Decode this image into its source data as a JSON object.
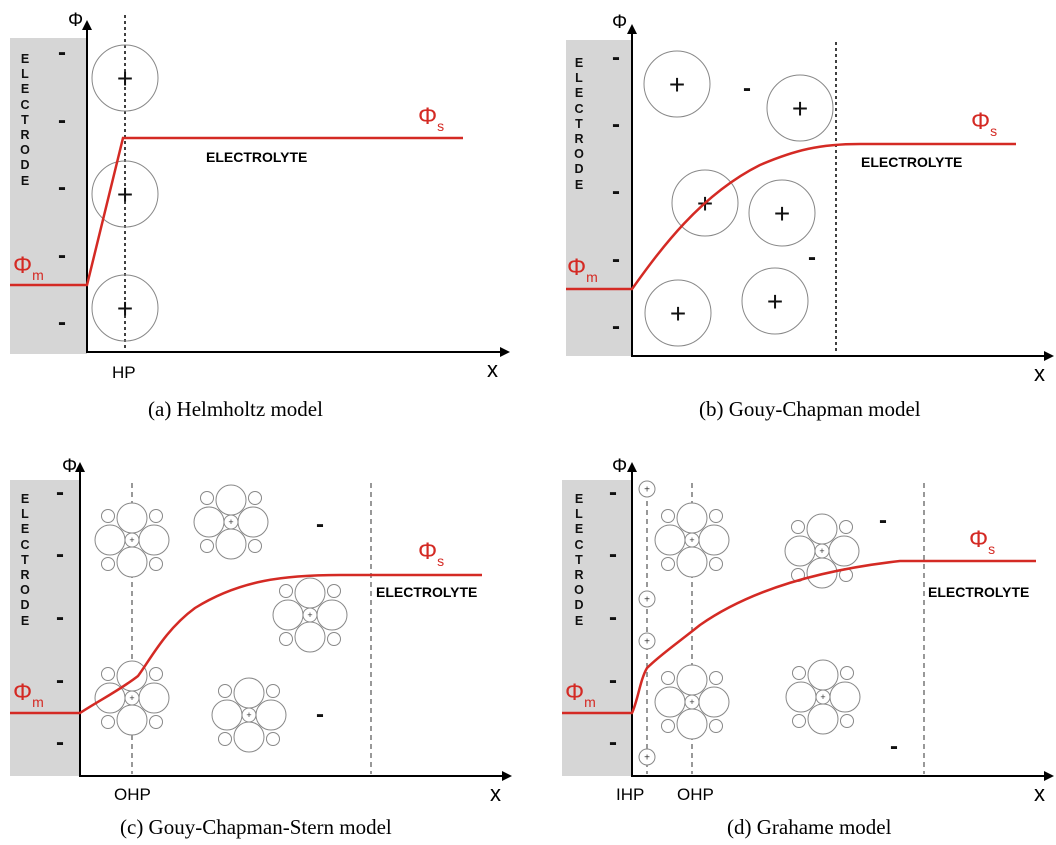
{
  "colors": {
    "potential": "#d42a24",
    "electrode_fill": "#d6d6d6",
    "axis": "#000000",
    "ion": "#888888"
  },
  "panels": [
    {
      "caption": "(a)  Helmholtz model",
      "electrode_label": "ELECTRODE",
      "phi_axis": "Φ",
      "x_axis": "x",
      "phi_m": "Φ",
      "phi_m_sub": "m",
      "phi_s": "Φ",
      "phi_s_sub": "s",
      "electrolyte": "ELECTROLYTE",
      "planes": [
        "HP"
      ]
    },
    {
      "caption": "(b)  Gouy-Chapman model",
      "electrode_label": "ELECTRODE",
      "phi_axis": "Φ",
      "x_axis": "x",
      "phi_m": "Φ",
      "phi_m_sub": "m",
      "phi_s": "Φ",
      "phi_s_sub": "s",
      "electrolyte": "ELECTROLYTE",
      "planes": []
    },
    {
      "caption": "(c)  Gouy-Chapman-Stern model",
      "electrode_label": "ELECTRODE",
      "phi_axis": "Φ",
      "x_axis": "x",
      "phi_m": "Φ",
      "phi_m_sub": "m",
      "phi_s": "Φ",
      "phi_s_sub": "s",
      "electrolyte": "ELECTROLYTE",
      "planes": [
        "OHP"
      ]
    },
    {
      "caption": "(d)  Grahame model",
      "electrode_label": "ELECTRODE",
      "phi_axis": "Φ",
      "x_axis": "x",
      "phi_m": "Φ",
      "phi_m_sub": "m",
      "phi_s": "Φ",
      "phi_s_sub": "s",
      "electrolyte": "ELECTROLYTE",
      "planes": [
        "IHP",
        "OHP"
      ]
    }
  ]
}
